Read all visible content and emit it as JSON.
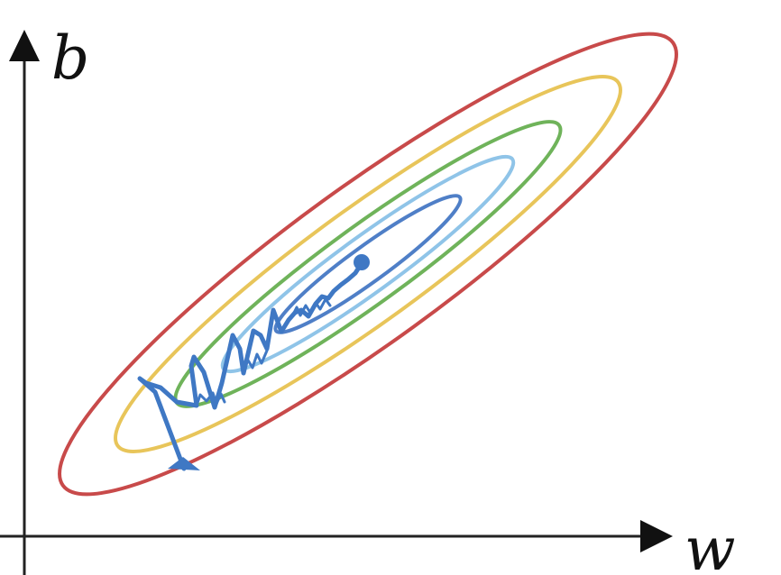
{
  "axes": {
    "x_label": "w",
    "y_label": "b"
  },
  "colors": {
    "axis": "#222222",
    "contours": [
      "#c84a4a",
      "#e8c55a",
      "#6fb35a",
      "#8fc4e8",
      "#4f7fc7"
    ],
    "descent_path": "#3f78c4"
  },
  "contour_count": 5,
  "descent_path": {
    "description_visible": false
  }
}
